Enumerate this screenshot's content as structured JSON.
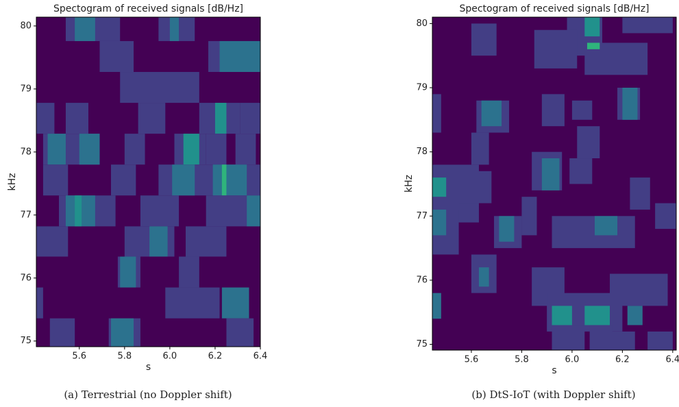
{
  "chart_data": [
    {
      "type": "heatmap",
      "title": "Spectogram of received signals [dB/Hz]",
      "xlabel": "s",
      "ylabel": "kHz",
      "caption": "(a) Terrestrial (no Doppler shift)",
      "background": "#440154",
      "xlim": [
        5.41,
        6.4
      ],
      "ylim": [
        74.91,
        80.14
      ],
      "xticks": [
        5.6,
        5.8,
        {
          "value": 6.0,
          "label": "6.0"
        },
        6.2,
        6.4
      ],
      "yticks": [
        75,
        76,
        77,
        78,
        79,
        80
      ],
      "blocks": [
        {
          "x": [
            5.54,
            5.78
          ],
          "y": [
            79.76,
            80.14
          ],
          "color": "#433e85"
        },
        {
          "x": [
            5.58,
            5.67
          ],
          "y": [
            79.76,
            80.14
          ],
          "color": "#2c728e"
        },
        {
          "x": [
            5.95,
            6.11
          ],
          "y": [
            79.76,
            80.14
          ],
          "color": "#433e85"
        },
        {
          "x": [
            6.0,
            6.04
          ],
          "y": [
            79.76,
            80.14
          ],
          "color": "#2c728e"
        },
        {
          "x": [
            5.69,
            5.84
          ],
          "y": [
            79.27,
            79.76
          ],
          "color": "#433e85"
        },
        {
          "x": [
            6.17,
            6.4
          ],
          "y": [
            79.27,
            79.76
          ],
          "color": "#433e85"
        },
        {
          "x": [
            6.22,
            6.4
          ],
          "y": [
            79.27,
            79.76
          ],
          "color": "#2c728e"
        },
        {
          "x": [
            5.78,
            6.13
          ],
          "y": [
            78.78,
            79.27
          ],
          "color": "#433e85"
        },
        {
          "x": [
            5.41,
            5.49
          ],
          "y": [
            78.29,
            78.78
          ],
          "color": "#433e85"
        },
        {
          "x": [
            5.54,
            5.64
          ],
          "y": [
            78.29,
            78.78
          ],
          "color": "#433e85"
        },
        {
          "x": [
            5.86,
            5.98
          ],
          "y": [
            78.29,
            78.78
          ],
          "color": "#433e85"
        },
        {
          "x": [
            6.13,
            6.31
          ],
          "y": [
            78.29,
            78.78
          ],
          "color": "#433e85"
        },
        {
          "x": [
            6.2,
            6.25
          ],
          "y": [
            78.29,
            78.78
          ],
          "color": "#21918c"
        },
        {
          "x": [
            6.31,
            6.4
          ],
          "y": [
            78.29,
            78.78
          ],
          "color": "#433e85"
        },
        {
          "x": [
            5.44,
            5.69
          ],
          "y": [
            77.8,
            78.29
          ],
          "color": "#433e85"
        },
        {
          "x": [
            5.46,
            5.54
          ],
          "y": [
            77.8,
            78.29
          ],
          "color": "#2c728e"
        },
        {
          "x": [
            5.6,
            5.69
          ],
          "y": [
            77.8,
            78.29
          ],
          "color": "#2c728e"
        },
        {
          "x": [
            5.8,
            5.89
          ],
          "y": [
            77.8,
            78.29
          ],
          "color": "#433e85"
        },
        {
          "x": [
            6.02,
            6.16
          ],
          "y": [
            77.8,
            78.29
          ],
          "color": "#433e85"
        },
        {
          "x": [
            6.06,
            6.13
          ],
          "y": [
            77.8,
            78.29
          ],
          "color": "#21918c"
        },
        {
          "x": [
            6.16,
            6.25
          ],
          "y": [
            77.8,
            78.29
          ],
          "color": "#433e85"
        },
        {
          "x": [
            6.29,
            6.38
          ],
          "y": [
            77.8,
            78.29
          ],
          "color": "#433e85"
        },
        {
          "x": [
            5.44,
            5.55
          ],
          "y": [
            77.31,
            77.8
          ],
          "color": "#433e85"
        },
        {
          "x": [
            5.74,
            5.85
          ],
          "y": [
            77.31,
            77.8
          ],
          "color": "#433e85"
        },
        {
          "x": [
            5.95,
            6.4
          ],
          "y": [
            77.31,
            77.8
          ],
          "color": "#433e85"
        },
        {
          "x": [
            6.01,
            6.11
          ],
          "y": [
            77.31,
            77.8
          ],
          "color": "#2c728e"
        },
        {
          "x": [
            6.19,
            6.34
          ],
          "y": [
            77.31,
            77.8
          ],
          "color": "#2c728e"
        },
        {
          "x": [
            6.23,
            6.25
          ],
          "y": [
            77.31,
            77.8
          ],
          "color": "#2fb47c"
        },
        {
          "x": [
            5.51,
            5.76
          ],
          "y": [
            76.82,
            77.31
          ],
          "color": "#433e85"
        },
        {
          "x": [
            5.54,
            5.67
          ],
          "y": [
            76.82,
            77.31
          ],
          "color": "#2c728e"
        },
        {
          "x": [
            5.58,
            5.61
          ],
          "y": [
            76.82,
            77.31
          ],
          "color": "#21918c"
        },
        {
          "x": [
            5.87,
            6.04
          ],
          "y": [
            76.82,
            77.31
          ],
          "color": "#433e85"
        },
        {
          "x": [
            6.16,
            6.4
          ],
          "y": [
            76.82,
            77.31
          ],
          "color": "#433e85"
        },
        {
          "x": [
            6.34,
            6.4
          ],
          "y": [
            76.82,
            77.31
          ],
          "color": "#2c728e"
        },
        {
          "x": [
            5.41,
            5.55
          ],
          "y": [
            76.34,
            76.82
          ],
          "color": "#433e85"
        },
        {
          "x": [
            5.8,
            6.02
          ],
          "y": [
            76.34,
            76.82
          ],
          "color": "#433e85"
        },
        {
          "x": [
            5.91,
            5.99
          ],
          "y": [
            76.34,
            76.82
          ],
          "color": "#2c728e"
        },
        {
          "x": [
            6.07,
            6.25
          ],
          "y": [
            76.34,
            76.82
          ],
          "color": "#433e85"
        },
        {
          "x": [
            5.77,
            5.87
          ],
          "y": [
            75.85,
            76.34
          ],
          "color": "#433e85"
        },
        {
          "x": [
            5.78,
            5.85
          ],
          "y": [
            75.85,
            76.34
          ],
          "color": "#2c728e"
        },
        {
          "x": [
            6.04,
            6.13
          ],
          "y": [
            75.85,
            76.34
          ],
          "color": "#433e85"
        },
        {
          "x": [
            5.41,
            5.44
          ],
          "y": [
            75.36,
            75.85
          ],
          "color": "#433e85"
        },
        {
          "x": [
            5.98,
            6.22
          ],
          "y": [
            75.36,
            75.85
          ],
          "color": "#433e85"
        },
        {
          "x": [
            6.23,
            6.35
          ],
          "y": [
            75.36,
            75.85
          ],
          "color": "#2c728e"
        },
        {
          "x": [
            5.47,
            5.58
          ],
          "y": [
            74.91,
            75.36
          ],
          "color": "#433e85"
        },
        {
          "x": [
            5.73,
            5.87
          ],
          "y": [
            74.91,
            75.36
          ],
          "color": "#433e85"
        },
        {
          "x": [
            5.74,
            5.84
          ],
          "y": [
            74.91,
            75.36
          ],
          "color": "#2c728e"
        },
        {
          "x": [
            6.25,
            6.37
          ],
          "y": [
            74.91,
            75.36
          ],
          "color": "#433e85"
        }
      ]
    },
    {
      "type": "heatmap",
      "title": "Spectogram of received signals [dB/Hz]",
      "xlabel": "s",
      "ylabel": "kHz",
      "caption": "(b) DtS-IoT (with Doppler shift)",
      "background": "#440154",
      "xlim": [
        5.445,
        6.414
      ],
      "ylim": [
        74.91,
        80.1
      ],
      "xticks": [
        5.6,
        5.8,
        {
          "value": 6.0,
          "label": "6.0"
        },
        6.2,
        6.4
      ],
      "yticks": [
        75,
        76,
        77,
        78,
        79,
        80
      ],
      "blocks": [
        {
          "x": [
            5.98,
            6.12
          ],
          "y": [
            79.5,
            80.1
          ],
          "color": "#433e85"
        },
        {
          "x": [
            5.85,
            6.02
          ],
          "y": [
            79.3,
            79.9
          ],
          "color": "#433e85"
        },
        {
          "x": [
            5.6,
            5.7
          ],
          "y": [
            79.5,
            80.0
          ],
          "color": "#433e85"
        },
        {
          "x": [
            6.05,
            6.3
          ],
          "y": [
            79.2,
            79.7
          ],
          "color": "#433e85"
        },
        {
          "x": [
            6.2,
            6.4
          ],
          "y": [
            79.85,
            80.1
          ],
          "color": "#433e85"
        },
        {
          "x": [
            6.05,
            6.11
          ],
          "y": [
            79.8,
            80.1
          ],
          "color": "#21918c"
        },
        {
          "x": [
            6.06,
            6.11
          ],
          "y": [
            79.6,
            79.7
          ],
          "color": "#2fb47c"
        },
        {
          "x": [
            5.62,
            5.75
          ],
          "y": [
            78.3,
            78.8
          ],
          "color": "#433e85"
        },
        {
          "x": [
            5.64,
            5.72
          ],
          "y": [
            78.4,
            78.8
          ],
          "color": "#2c728e"
        },
        {
          "x": [
            5.445,
            5.48
          ],
          "y": [
            78.3,
            78.9
          ],
          "color": "#433e85"
        },
        {
          "x": [
            5.88,
            5.97
          ],
          "y": [
            78.4,
            78.9
          ],
          "color": "#433e85"
        },
        {
          "x": [
            6.18,
            6.27
          ],
          "y": [
            78.5,
            79.0
          ],
          "color": "#433e85"
        },
        {
          "x": [
            6.2,
            6.26
          ],
          "y": [
            78.5,
            79.0
          ],
          "color": "#2c728e"
        },
        {
          "x": [
            6.0,
            6.08
          ],
          "y": [
            78.5,
            78.8
          ],
          "color": "#433e85"
        },
        {
          "x": [
            6.02,
            6.11
          ],
          "y": [
            77.9,
            78.4
          ],
          "color": "#433e85"
        },
        {
          "x": [
            5.445,
            5.63
          ],
          "y": [
            76.9,
            77.8
          ],
          "color": "#433e85"
        },
        {
          "x": [
            5.445,
            5.5
          ],
          "y": [
            77.3,
            77.6
          ],
          "color": "#21918c"
        },
        {
          "x": [
            5.6,
            5.67
          ],
          "y": [
            77.8,
            78.3
          ],
          "color": "#433e85"
        },
        {
          "x": [
            5.84,
            5.96
          ],
          "y": [
            77.4,
            78.0
          ],
          "color": "#433e85"
        },
        {
          "x": [
            5.88,
            5.95
          ],
          "y": [
            77.4,
            77.9
          ],
          "color": "#2c728e"
        },
        {
          "x": [
            5.55,
            5.68
          ],
          "y": [
            77.2,
            77.7
          ],
          "color": "#433e85"
        },
        {
          "x": [
            5.99,
            6.08
          ],
          "y": [
            77.5,
            77.9
          ],
          "color": "#433e85"
        },
        {
          "x": [
            6.23,
            6.31
          ],
          "y": [
            77.1,
            77.6
          ],
          "color": "#433e85"
        },
        {
          "x": [
            6.33,
            6.414
          ],
          "y": [
            76.8,
            77.2
          ],
          "color": "#433e85"
        },
        {
          "x": [
            5.445,
            5.55
          ],
          "y": [
            76.4,
            77.1
          ],
          "color": "#433e85"
        },
        {
          "x": [
            5.445,
            5.5
          ],
          "y": [
            76.7,
            77.1
          ],
          "color": "#2c728e"
        },
        {
          "x": [
            5.69,
            5.8
          ],
          "y": [
            76.5,
            77.0
          ],
          "color": "#433e85"
        },
        {
          "x": [
            5.71,
            5.77
          ],
          "y": [
            76.6,
            77.0
          ],
          "color": "#2c728e"
        },
        {
          "x": [
            5.92,
            6.25
          ],
          "y": [
            76.5,
            77.0
          ],
          "color": "#433e85"
        },
        {
          "x": [
            6.09,
            6.18
          ],
          "y": [
            76.7,
            77.0
          ],
          "color": "#2c728e"
        },
        {
          "x": [
            5.8,
            5.86
          ],
          "y": [
            76.7,
            77.3
          ],
          "color": "#433e85"
        },
        {
          "x": [
            5.6,
            5.7
          ],
          "y": [
            75.8,
            76.4
          ],
          "color": "#433e85"
        },
        {
          "x": [
            5.63,
            5.67
          ],
          "y": [
            75.9,
            76.2
          ],
          "color": "#2c728e"
        },
        {
          "x": [
            5.84,
            5.97
          ],
          "y": [
            75.6,
            76.2
          ],
          "color": "#433e85"
        },
        {
          "x": [
            6.15,
            6.38
          ],
          "y": [
            75.6,
            76.1
          ],
          "color": "#433e85"
        },
        {
          "x": [
            5.9,
            6.2
          ],
          "y": [
            75.2,
            75.8
          ],
          "color": "#433e85"
        },
        {
          "x": [
            5.92,
            6.0
          ],
          "y": [
            75.2,
            75.6
          ],
          "color": "#21918c"
        },
        {
          "x": [
            6.05,
            6.15
          ],
          "y": [
            75.3,
            75.6
          ],
          "color": "#21918c"
        },
        {
          "x": [
            6.22,
            6.28
          ],
          "y": [
            75.3,
            75.6
          ],
          "color": "#2c728e"
        },
        {
          "x": [
            5.445,
            5.48
          ],
          "y": [
            75.4,
            75.8
          ],
          "color": "#2c728e"
        },
        {
          "x": [
            5.92,
            6.05
          ],
          "y": [
            74.91,
            75.3
          ],
          "color": "#433e85"
        },
        {
          "x": [
            6.07,
            6.16
          ],
          "y": [
            74.91,
            75.3
          ],
          "color": "#433e85"
        },
        {
          "x": [
            6.12,
            6.25
          ],
          "y": [
            74.91,
            75.2
          ],
          "color": "#433e85"
        },
        {
          "x": [
            6.3,
            6.4
          ],
          "y": [
            74.91,
            75.2
          ],
          "color": "#433e85"
        }
      ]
    }
  ]
}
